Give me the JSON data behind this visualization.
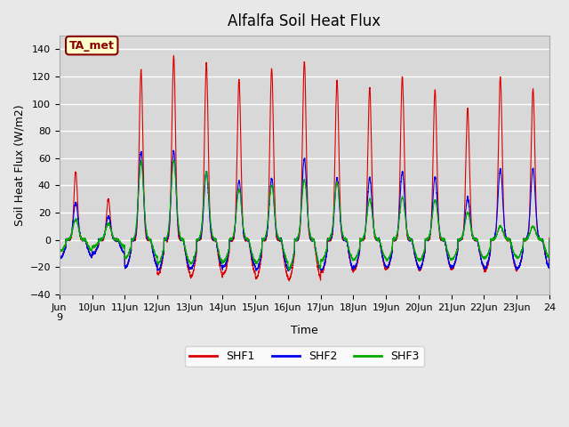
{
  "title": "Alfalfa Soil Heat Flux",
  "ylabel": "Soil Heat Flux (W/m2)",
  "xlabel": "Time",
  "ylim": [
    -40,
    150
  ],
  "yticks": [
    -40,
    -20,
    0,
    20,
    40,
    60,
    80,
    100,
    120,
    140
  ],
  "background_color": "#e8e8e8",
  "plot_bg_color": "#d8d8d8",
  "grid_color": "#ffffff",
  "shf1_color": "#dd0000",
  "shf2_color": "#0000ee",
  "shf3_color": "#00aa00",
  "legend_label1": "SHF1",
  "legend_label2": "SHF2",
  "legend_label3": "SHF3",
  "annotation_text": "TA_met",
  "annotation_color": "#880000",
  "annotation_bg": "#ffffcc",
  "n_days": 15,
  "points_per_day": 288
}
